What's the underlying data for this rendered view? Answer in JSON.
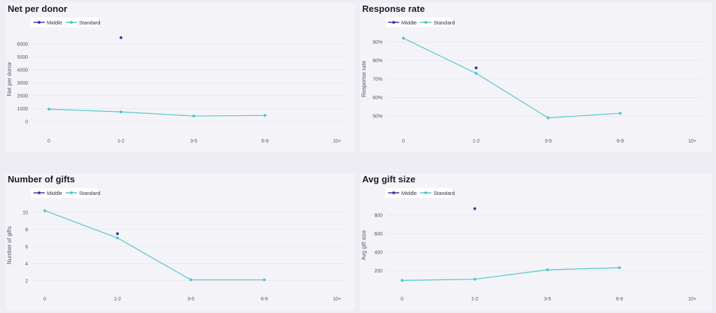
{
  "colors": {
    "middle": "#3b33a8",
    "standard": "#4cc9c9",
    "grid": "#e2e1ea",
    "text": "#555566"
  },
  "legend": {
    "middle": "Middle",
    "standard": "Standard"
  },
  "chart_data": [
    {
      "type": "line",
      "title": "Net per donor",
      "ylabel": "Net per donor",
      "categories": [
        "0",
        "1-2",
        "3-5",
        "6-9",
        "10+"
      ],
      "yticks": [
        "0",
        "1000",
        "2000",
        "3000",
        "4000",
        "5000",
        "6000"
      ],
      "ylim": [
        0,
        6600
      ],
      "legend_position": "top-left",
      "series": [
        {
          "name": "Middle",
          "values": [
            null,
            6500,
            null,
            null,
            null
          ]
        },
        {
          "name": "Standard",
          "values": [
            960,
            750,
            430,
            470,
            null
          ]
        }
      ]
    },
    {
      "type": "line",
      "title": "Response rate",
      "ylabel": "Response rate",
      "categories": [
        "0",
        "1-2",
        "3-5",
        "6-9",
        "10+"
      ],
      "yticks": [
        "50%",
        "60%",
        "70%",
        "80%",
        "90%"
      ],
      "ylim": [
        0.47,
        0.93
      ],
      "legend_position": "top-left",
      "series": [
        {
          "name": "Middle",
          "values": [
            null,
            0.76,
            null,
            null,
            null
          ]
        },
        {
          "name": "Standard",
          "values": [
            0.92,
            0.73,
            0.49,
            0.515,
            null
          ]
        }
      ]
    },
    {
      "type": "line",
      "title": "Number of gifts",
      "ylabel": "Number of gifts",
      "categories": [
        "0",
        "1-2",
        "3-5",
        "6-9",
        "10+"
      ],
      "yticks": [
        "2",
        "4",
        "6",
        "8",
        "10"
      ],
      "ylim": [
        1,
        11.3
      ],
      "legend_position": "top-left",
      "series": [
        {
          "name": "Middle",
          "values": [
            null,
            7.5,
            null,
            null,
            null
          ]
        },
        {
          "name": "Standard",
          "values": [
            10.2,
            7.0,
            2.1,
            2.1,
            null
          ]
        }
      ]
    },
    {
      "type": "line",
      "title": "Avg gift size",
      "ylabel": "Avg gift size",
      "categories": [
        "0",
        "1-2",
        "3-5",
        "6-9",
        "10+"
      ],
      "yticks": [
        "200",
        "400",
        "600",
        "800"
      ],
      "ylim": [
        0,
        950
      ],
      "legend_position": "top-left",
      "series": [
        {
          "name": "Middle",
          "values": [
            null,
            870,
            null,
            null,
            null
          ]
        },
        {
          "name": "Standard",
          "values": [
            95,
            108,
            210,
            232,
            null
          ]
        }
      ]
    }
  ]
}
